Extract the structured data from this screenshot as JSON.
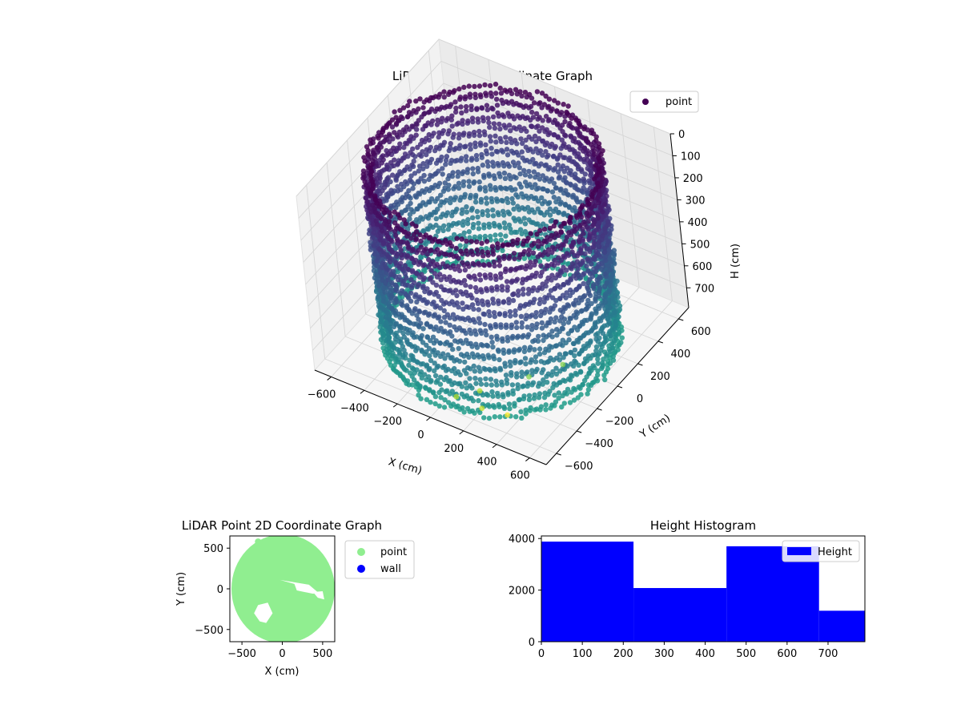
{
  "figure_colors": {
    "background": "#ffffff",
    "pane": "#f2f2f2",
    "grid": "#d6d6d6"
  },
  "chart_data": [
    {
      "id": "lidar-3d",
      "type": "scatter",
      "title": "LiDAR Point 3D Coordinate Graph",
      "xlabel": "X (cm)",
      "ylabel": "Y (cm)",
      "zlabel": "H (cm)",
      "xlim": [
        -700,
        700
      ],
      "ylim": [
        -700,
        700
      ],
      "zlim": [
        0,
        790
      ],
      "z_axis_inverted": true,
      "x_ticks": [
        "−600",
        "−400",
        "−200",
        "0",
        "200",
        "400",
        "600"
      ],
      "y_ticks": [
        "−600",
        "−400",
        "−200",
        "0",
        "200",
        "400",
        "600"
      ],
      "z_ticks": [
        "0",
        "100",
        "200",
        "300",
        "400",
        "500",
        "600",
        "700"
      ],
      "colormap": "viridis",
      "legend": {
        "placement": "upper-right",
        "entries": [
          {
            "name": "point",
            "color": "#440154"
          }
        ]
      },
      "description": "Ring-shaped wall of points, radius about 600 cm, spanning heights 0 to about 790 cm; a few outlier points scattered in front of the ring",
      "outliers": [
        {
          "x": 330,
          "y": -480,
          "h": 790
        },
        {
          "x": 200,
          "y": -520,
          "h": 700
        },
        {
          "x": 260,
          "y": -600,
          "h": 720
        },
        {
          "x": 120,
          "y": -620,
          "h": 700
        },
        {
          "x": 520,
          "y": -210,
          "h": 640
        },
        {
          "x": 420,
          "y": -380,
          "h": 640
        }
      ],
      "grid": true
    },
    {
      "id": "lidar-2d",
      "type": "scatter",
      "title": "LiDAR Point 2D Coordinate Graph",
      "xlabel": "X (cm)",
      "ylabel": "Y (cm)",
      "xlim": [
        -650,
        650
      ],
      "ylim": [
        -650,
        650
      ],
      "x_ticks": [
        "−500",
        "0",
        "500"
      ],
      "y_ticks": [
        "−500",
        "0",
        "500"
      ],
      "series": [
        {
          "name": "point",
          "color": "#90ee90",
          "shape": "filled disc, radius about 640 cm, centered near (0, 0)"
        },
        {
          "name": "wall",
          "color": "#0000ff",
          "values": []
        }
      ],
      "legend": {
        "placement": "outside-right",
        "entries": [
          {
            "name": "point",
            "color": "#90ee90"
          },
          {
            "name": "wall",
            "color": "#0000ff"
          }
        ]
      },
      "grid": false
    },
    {
      "id": "height-hist",
      "type": "bar",
      "title": "Height Histogram",
      "xlim": [
        0,
        790
      ],
      "ylim": [
        0,
        4100
      ],
      "x_ticks": [
        "0",
        "100",
        "200",
        "300",
        "400",
        "500",
        "600",
        "700"
      ],
      "y_ticks": [
        "0",
        "2000",
        "4000"
      ],
      "bins": [
        {
          "start": 0,
          "end": 225,
          "value": 3880
        },
        {
          "start": 225,
          "end": 452,
          "value": 2080
        },
        {
          "start": 452,
          "end": 678,
          "value": 3700
        },
        {
          "start": 678,
          "end": 790,
          "value": 1200
        }
      ],
      "bar_color": "#0000ff",
      "legend": {
        "placement": "upper-right",
        "entries": [
          {
            "name": "Height",
            "color": "#0000ff"
          }
        ]
      },
      "grid": false
    }
  ]
}
